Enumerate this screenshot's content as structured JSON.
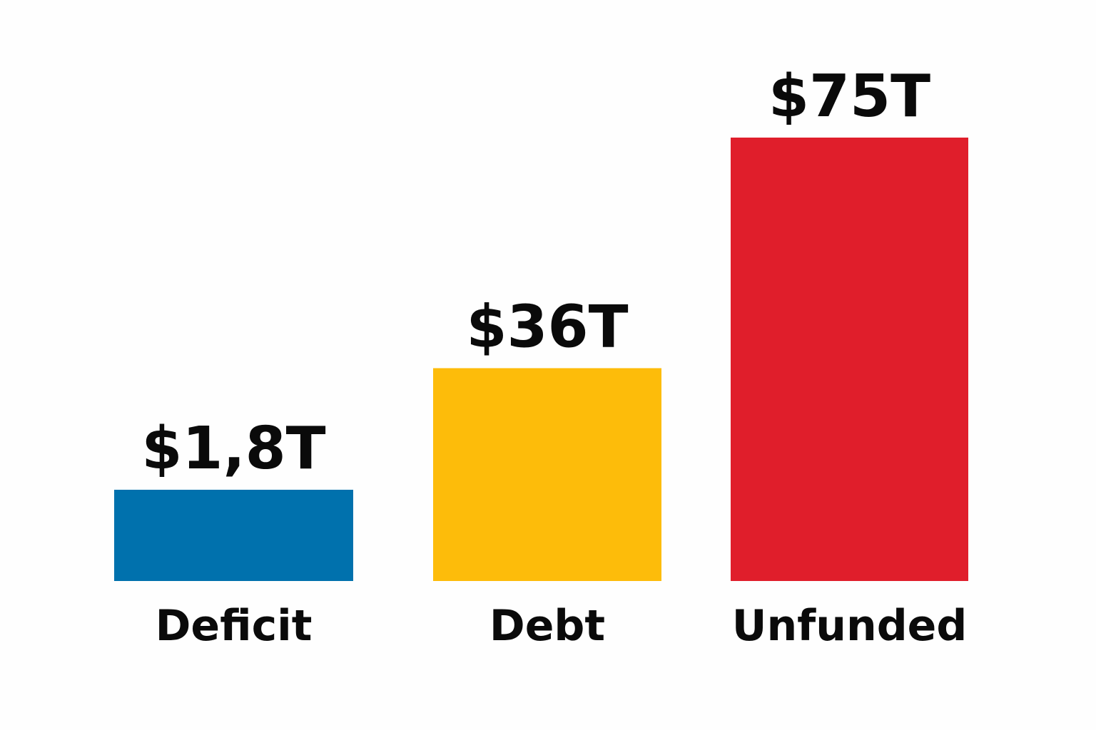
{
  "chart_data": {
    "type": "bar",
    "categories": [
      "Deficit",
      "Debt",
      "Unfunded"
    ],
    "values": [
      1.8,
      36,
      75
    ],
    "value_labels": [
      "$1,8T",
      "$36T",
      "$75T"
    ],
    "colors": [
      "#0071ad",
      "#fdbc0a",
      "#e01e2b"
    ],
    "title": "",
    "xlabel": "",
    "ylabel": "",
    "grid": false,
    "legend": "none"
  }
}
